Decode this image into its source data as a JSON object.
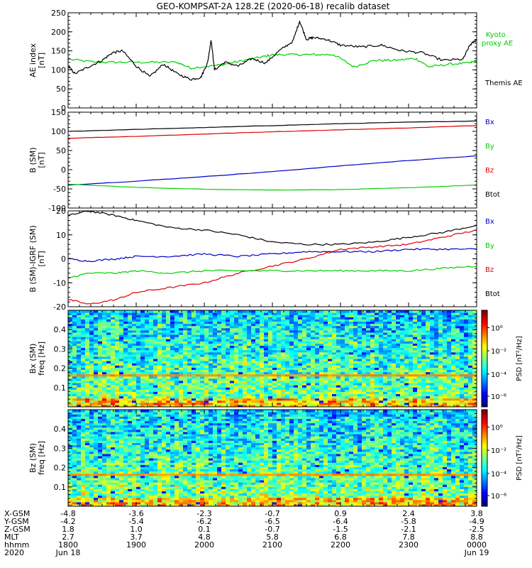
{
  "title": "GEO-KOMPSAT-2A 128.2E (2020-06-18) recalib dataset",
  "colors": {
    "black": "#000000",
    "green": "#00d000",
    "red": "#e00000",
    "blue": "#0000c8"
  },
  "chart_data": [
    {
      "id": "ae",
      "type": "line",
      "ylabel": "AE index",
      "yunits": "[nT]",
      "ylim": [
        0,
        250
      ],
      "yticks": [
        0,
        50,
        100,
        150,
        200,
        250
      ],
      "legend": [
        {
          "label": "Kyoto",
          "color": "green"
        },
        {
          "label": "proxy AE",
          "color": "green"
        },
        {
          "label": "Themis AE",
          "color": "black"
        }
      ],
      "series": [
        {
          "name": "Kyoto proxy AE",
          "color": "green",
          "x": [
            18.0,
            18.4,
            18.8,
            19.2,
            19.6,
            19.8,
            20.2,
            20.5,
            20.8,
            21.0,
            21.3,
            21.6,
            21.9,
            22.2,
            22.5,
            22.8,
            23.1,
            23.3,
            23.6,
            23.9,
            24.0
          ],
          "y": [
            128,
            120,
            120,
            120,
            120,
            105,
            112,
            122,
            132,
            140,
            140,
            140,
            140,
            108,
            125,
            125,
            130,
            108,
            115,
            118,
            125
          ]
        },
        {
          "name": "Themis AE",
          "color": "black",
          "x": [
            18.0,
            18.1,
            18.3,
            18.5,
            18.65,
            18.8,
            19.0,
            19.2,
            19.4,
            19.6,
            19.8,
            19.95,
            20.05,
            20.1,
            20.15,
            20.3,
            20.5,
            20.7,
            20.9,
            21.1,
            21.3,
            21.4,
            21.5,
            21.6,
            21.8,
            22.0,
            22.3,
            22.6,
            22.9,
            23.2,
            23.5,
            23.8,
            23.9,
            24.0
          ],
          "y": [
            110,
            90,
            108,
            125,
            145,
            150,
            110,
            82,
            115,
            90,
            75,
            80,
            120,
            180,
            100,
            120,
            110,
            130,
            118,
            150,
            175,
            228,
            180,
            185,
            180,
            165,
            160,
            165,
            150,
            145,
            125,
            128,
            165,
            180
          ]
        }
      ]
    },
    {
      "id": "bsm",
      "type": "line",
      "ylabel": "B (SM)",
      "yunits": "[nT]",
      "ylim": [
        -100,
        150
      ],
      "yticks": [
        -100,
        -50,
        0,
        50,
        100,
        150
      ],
      "legend": [
        {
          "label": "Bx",
          "color": "blue"
        },
        {
          "label": "By",
          "color": "green"
        },
        {
          "label": "Bz",
          "color": "red"
        },
        {
          "label": "Btot",
          "color": "black"
        }
      ],
      "series": [
        {
          "name": "Btot",
          "color": "black",
          "x": [
            18,
            19,
            20,
            21,
            22,
            23,
            24
          ],
          "y": [
            100,
            105,
            110,
            115,
            120,
            124,
            127
          ]
        },
        {
          "name": "Bz",
          "color": "red",
          "x": [
            18,
            19,
            20,
            21,
            22,
            23,
            24
          ],
          "y": [
            82,
            87,
            93,
            99,
            104,
            109,
            115
          ]
        },
        {
          "name": "Bx",
          "color": "blue",
          "x": [
            18,
            19,
            20,
            21,
            22,
            23,
            24
          ],
          "y": [
            -40,
            -30,
            -18,
            -5,
            10,
            24,
            36
          ]
        },
        {
          "name": "By",
          "color": "green",
          "x": [
            18,
            19,
            20,
            21,
            22,
            23,
            24
          ],
          "y": [
            -38,
            -46,
            -51,
            -53,
            -52,
            -47,
            -40
          ]
        }
      ]
    },
    {
      "id": "bdiff",
      "type": "line",
      "ylabel": "B (SM)-IGRF (SM)",
      "yunits": "[nT]",
      "ylim": [
        -20,
        20
      ],
      "yticks": [
        -20,
        -10,
        0,
        10,
        20
      ],
      "legend": [
        {
          "label": "Bx",
          "color": "blue"
        },
        {
          "label": "By",
          "color": "green"
        },
        {
          "label": "Bz",
          "color": "red"
        },
        {
          "label": "Btot",
          "color": "black"
        }
      ],
      "series": [
        {
          "name": "Btot",
          "color": "black",
          "x": [
            18.0,
            18.3,
            18.7,
            19.0,
            19.5,
            20.0,
            20.5,
            21.0,
            21.5,
            22.0,
            22.5,
            23.0,
            23.5,
            24.0
          ],
          "y": [
            18,
            20,
            18,
            16,
            13,
            12,
            10,
            7,
            6,
            6,
            7,
            9,
            11,
            14
          ]
        },
        {
          "name": "Bz",
          "color": "red",
          "x": [
            18.0,
            18.3,
            18.7,
            19.0,
            19.5,
            20.0,
            20.5,
            21.0,
            21.5,
            22.0,
            22.5,
            23.0,
            23.5,
            24.0
          ],
          "y": [
            -17,
            -19,
            -17,
            -14,
            -12,
            -10,
            -6,
            -3,
            0,
            4,
            5,
            6,
            9,
            12
          ]
        },
        {
          "name": "Bx",
          "color": "blue",
          "x": [
            18.0,
            18.3,
            18.7,
            19.0,
            19.5,
            20.0,
            20.5,
            21.0,
            21.5,
            22.0,
            22.5,
            23.0,
            23.5,
            24.0
          ],
          "y": [
            0,
            -1,
            0,
            1,
            1,
            2,
            1,
            2,
            3,
            3,
            3,
            4,
            4,
            4
          ]
        },
        {
          "name": "By",
          "color": "green",
          "x": [
            18.0,
            18.3,
            18.7,
            19.0,
            19.5,
            20.0,
            20.5,
            21.0,
            21.5,
            22.0,
            22.5,
            23.0,
            23.5,
            24.0
          ],
          "y": [
            -8,
            -6,
            -6,
            -5,
            -6,
            -5,
            -5,
            -5,
            -5,
            -5,
            -5,
            -5,
            -4,
            -3
          ]
        }
      ]
    },
    {
      "id": "bx_spec",
      "type": "heatmap",
      "ylabel": "Bx (SM)",
      "yunits": "freq [Hz]",
      "ylim": [
        0,
        0.5
      ],
      "yticks": [
        0.1,
        0.2,
        0.3,
        0.4
      ],
      "colorbar_label": "PSD [nT²/Hz]",
      "colorbar_ticks": [
        "10⁰",
        "10⁻²",
        "10⁻⁴",
        "10⁻⁶"
      ],
      "band_freq": 0.17
    },
    {
      "id": "bz_spec",
      "type": "heatmap",
      "ylabel": "Bz (SM)",
      "yunits": "freq [Hz]",
      "ylim": [
        0,
        0.5
      ],
      "yticks": [
        0.1,
        0.2,
        0.3,
        0.4
      ],
      "colorbar_label": "PSD [nT²/Hz]",
      "colorbar_ticks": [
        "10⁰",
        "10⁻²",
        "10⁻⁴",
        "10⁻⁶"
      ],
      "band_freq": 0.17
    }
  ],
  "x_axis": {
    "range": [
      18,
      24
    ],
    "ticks": [
      18,
      19,
      20,
      21,
      22,
      23,
      24
    ],
    "rows": [
      {
        "name": "X-GSM",
        "values": [
          "-4.8",
          "-3.6",
          "-2.3",
          "-0.7",
          "0.9",
          "2.4",
          "3.8"
        ]
      },
      {
        "name": "Y-GSM",
        "values": [
          "-4.2",
          "-5.4",
          "-6.2",
          "-6.5",
          "-6.4",
          "-5.8",
          "-4.9"
        ]
      },
      {
        "name": "Z-GSM",
        "values": [
          "1.8",
          "1.0",
          "0.1",
          "-0.7",
          "-1.5",
          "-2.1",
          "-2.5"
        ]
      },
      {
        "name": "MLT",
        "values": [
          "2.7",
          "3.7",
          "4.8",
          "5.8",
          "6.8",
          "7.8",
          "8.8"
        ]
      },
      {
        "name": "hhmm",
        "values": [
          "1800",
          "1900",
          "2000",
          "2100",
          "2200",
          "2300",
          "0000"
        ]
      },
      {
        "name": "2020",
        "values": [
          "Jun 18",
          "",
          "",
          "",
          "",
          "",
          "Jun 19"
        ]
      }
    ]
  }
}
